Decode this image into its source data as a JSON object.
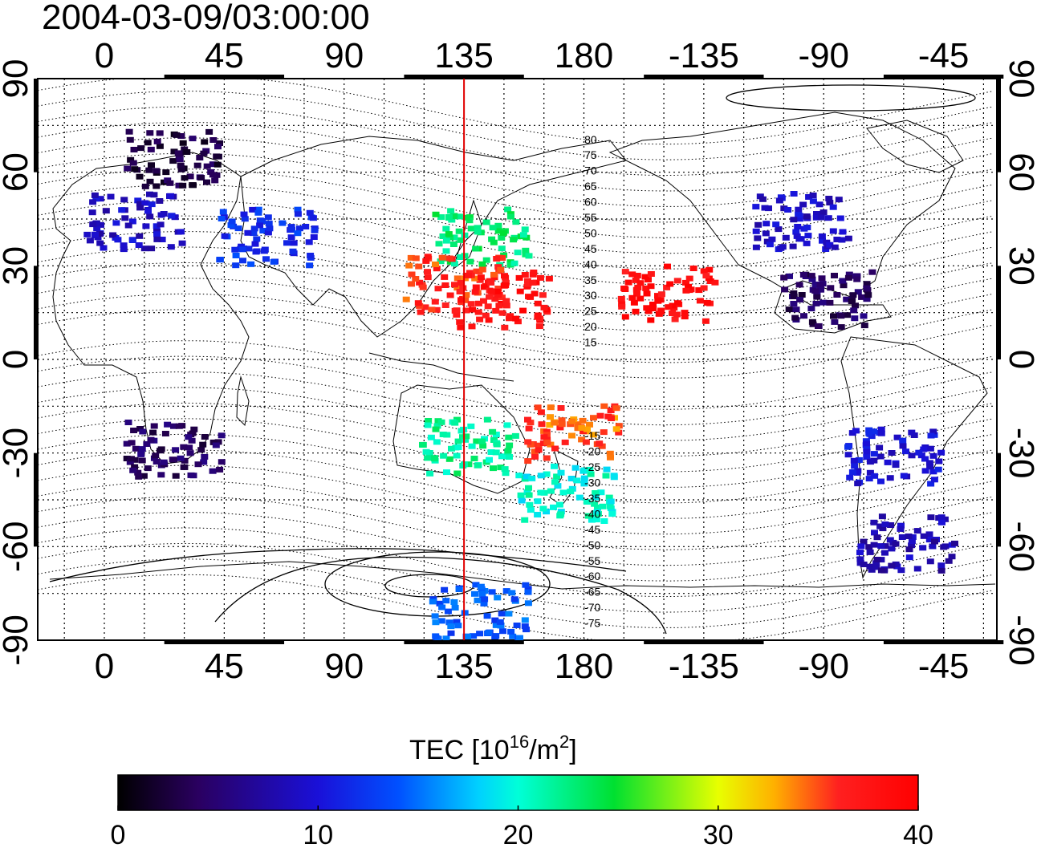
{
  "title": "2004-03-09/03:00:00",
  "map": {
    "x_ticks": [
      "0",
      "45",
      "90",
      "135",
      "180",
      "-135",
      "-90",
      "-45"
    ],
    "y_ticks": [
      "90",
      "60",
      "30",
      "0",
      "-30",
      "-60",
      "-90"
    ],
    "marker_line_longitude": 135,
    "marker_line_color": "#e00000",
    "mlat_labels": [
      "80",
      "75",
      "70",
      "65",
      "60",
      "55",
      "50",
      "45",
      "40",
      "35",
      "30",
      "25",
      "20",
      "15",
      "-15",
      "-20",
      "-25",
      "-30",
      "-35",
      "-40",
      "-45",
      "-50",
      "-55",
      "-60",
      "-65",
      "-70",
      "-75"
    ],
    "tec_patches": [
      {
        "lon": 10,
        "lat": 45,
        "tec": 9
      },
      {
        "lon": 25,
        "lat": 65,
        "tec": 3
      },
      {
        "lon": 60,
        "lat": 40,
        "tec": 12
      },
      {
        "lon": 140,
        "lat": 40,
        "tec": 23
      },
      {
        "lon": 130,
        "lat": 25,
        "tec": 36
      },
      {
        "lon": 148,
        "lat": 20,
        "tec": 38
      },
      {
        "lon": -150,
        "lat": 22,
        "tec": 38
      },
      {
        "lon": -100,
        "lat": 45,
        "tec": 9
      },
      {
        "lon": -90,
        "lat": 20,
        "tec": 4
      },
      {
        "lon": 175,
        "lat": -23,
        "tec": 35
      },
      {
        "lon": 135,
        "lat": -27,
        "tec": 22
      },
      {
        "lon": 172,
        "lat": -42,
        "tec": 20
      },
      {
        "lon": -65,
        "lat": -30,
        "tec": 10
      },
      {
        "lon": 25,
        "lat": -28,
        "tec": 4
      },
      {
        "lon": 140,
        "lat": -80,
        "tec": 14
      },
      {
        "lon": -60,
        "lat": -58,
        "tec": 8
      }
    ]
  },
  "colorbar": {
    "title": "TEC  [10",
    "superscript": "16",
    "unit": "/m",
    "unit_superscript": "2",
    "unit_close": "]",
    "labels": [
      "0",
      "10",
      "20",
      "30",
      "40"
    ],
    "min": 0,
    "max": 40
  }
}
